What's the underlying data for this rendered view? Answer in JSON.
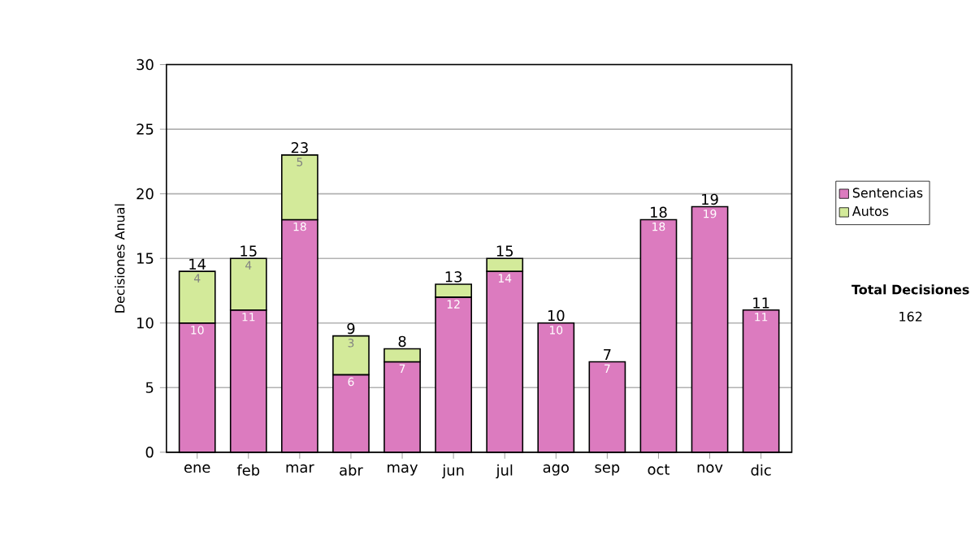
{
  "chart_data": {
    "type": "bar",
    "stacked": true,
    "ylabel": "Decisiones Anual",
    "categories": [
      "ene",
      "feb",
      "mar",
      "abr",
      "may",
      "jun",
      "jul",
      "ago",
      "sep",
      "oct",
      "nov",
      "dic"
    ],
    "series": [
      {
        "name": "Sentencias",
        "color": "#dc7bbf",
        "values": [
          10,
          11,
          18,
          6,
          7,
          12,
          14,
          10,
          7,
          18,
          19,
          11
        ],
        "value_labels": [
          "10",
          "11",
          "18",
          "6",
          "7",
          "12",
          "14",
          "10",
          "7",
          "18",
          "19",
          "11"
        ]
      },
      {
        "name": "Autos",
        "color": "#d3ea9a",
        "values": [
          4,
          4,
          5,
          3,
          1,
          1,
          1,
          null,
          null,
          null,
          null,
          null
        ],
        "value_labels": [
          "4",
          "4",
          "5",
          "3",
          null,
          null,
          null,
          null,
          null,
          null,
          null,
          null
        ]
      }
    ],
    "totals": [
      "14",
      "15",
      "23",
      "9",
      "8",
      "13",
      "15",
      "10",
      "7",
      "18",
      "19",
      "11"
    ],
    "ylim": [
      0,
      30
    ],
    "yticks": [
      0,
      5,
      10,
      15,
      20,
      25,
      30
    ],
    "grid": "y",
    "legend": "right",
    "annotations": [
      "Total Decisiones",
      "162"
    ]
  }
}
